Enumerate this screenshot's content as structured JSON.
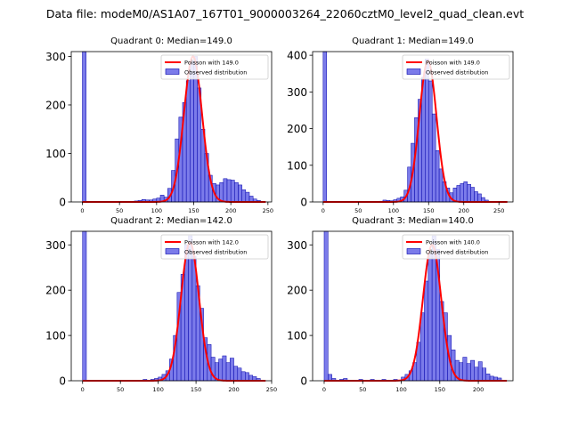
{
  "figure_title": "Data file: modeM0/AS1A07_167T01_9000003264_22060cztM0_level2_quad_clean.evt",
  "colors": {
    "bar_fill": "#7b7bea",
    "bar_edge": "#0000aa",
    "curve": "#ff0000",
    "axis": "#000000"
  },
  "chart_data": [
    {
      "type": "bar",
      "title": "Quadrant 0: Median=149.0",
      "xlim": [
        -15,
        255
      ],
      "ylim": [
        0,
        310
      ],
      "xticks": [
        0,
        50,
        100,
        150,
        200,
        250
      ],
      "yticks": [
        0,
        100,
        200,
        300
      ],
      "bin_width": 5,
      "bins": [
        [
          0,
          310
        ],
        [
          70,
          2
        ],
        [
          75,
          3
        ],
        [
          80,
          5
        ],
        [
          85,
          4
        ],
        [
          90,
          4
        ],
        [
          95,
          6
        ],
        [
          100,
          8
        ],
        [
          105,
          14
        ],
        [
          110,
          10
        ],
        [
          115,
          28
        ],
        [
          120,
          65
        ],
        [
          125,
          130
        ],
        [
          130,
          175
        ],
        [
          135,
          205
        ],
        [
          140,
          250
        ],
        [
          145,
          290
        ],
        [
          150,
          300
        ],
        [
          155,
          235
        ],
        [
          160,
          150
        ],
        [
          165,
          100
        ],
        [
          170,
          55
        ],
        [
          175,
          38
        ],
        [
          180,
          35
        ],
        [
          185,
          40
        ],
        [
          190,
          48
        ],
        [
          195,
          46
        ],
        [
          200,
          45
        ],
        [
          205,
          40
        ],
        [
          210,
          35
        ],
        [
          215,
          25
        ],
        [
          220,
          20
        ],
        [
          225,
          12
        ],
        [
          230,
          6
        ],
        [
          235,
          3
        ]
      ],
      "curve_mean": 149.0,
      "curve_peak": 300,
      "legend": [
        "Poisson with 149.0",
        "Observed distribution"
      ]
    },
    {
      "type": "bar",
      "title": "Quadrant 1: Median=149.0",
      "xlim": [
        -15,
        270
      ],
      "ylim": [
        0,
        410
      ],
      "xticks": [
        0,
        50,
        100,
        150,
        200,
        250
      ],
      "yticks": [
        0,
        100,
        200,
        300,
        400
      ],
      "bin_width": 5,
      "bins": [
        [
          0,
          410
        ],
        [
          80,
          2
        ],
        [
          85,
          5
        ],
        [
          90,
          4
        ],
        [
          95,
          3
        ],
        [
          100,
          6
        ],
        [
          105,
          10
        ],
        [
          110,
          14
        ],
        [
          115,
          32
        ],
        [
          120,
          95
        ],
        [
          125,
          160
        ],
        [
          130,
          230
        ],
        [
          135,
          280
        ],
        [
          140,
          340
        ],
        [
          145,
          390
        ],
        [
          150,
          330
        ],
        [
          155,
          240
        ],
        [
          160,
          140
        ],
        [
          165,
          90
        ],
        [
          170,
          55
        ],
        [
          175,
          38
        ],
        [
          180,
          25
        ],
        [
          185,
          38
        ],
        [
          190,
          45
        ],
        [
          195,
          50
        ],
        [
          200,
          55
        ],
        [
          205,
          48
        ],
        [
          210,
          40
        ],
        [
          215,
          28
        ],
        [
          220,
          22
        ],
        [
          225,
          12
        ],
        [
          230,
          5
        ]
      ],
      "curve_mean": 149.0,
      "curve_peak": 385,
      "legend": [
        "Poisson with 149.0",
        "Observed distribution"
      ]
    },
    {
      "type": "bar",
      "title": "Quadrant 2: Median=142.0",
      "xlim": [
        -15,
        250
      ],
      "ylim": [
        0,
        330
      ],
      "xticks": [
        0,
        50,
        100,
        150,
        200,
        250
      ],
      "yticks": [
        0,
        100,
        200,
        300
      ],
      "bin_width": 5,
      "bins": [
        [
          0,
          330
        ],
        [
          80,
          3
        ],
        [
          90,
          3
        ],
        [
          95,
          5
        ],
        [
          100,
          8
        ],
        [
          105,
          14
        ],
        [
          110,
          22
        ],
        [
          115,
          48
        ],
        [
          120,
          100
        ],
        [
          125,
          195
        ],
        [
          130,
          235
        ],
        [
          135,
          300
        ],
        [
          140,
          320
        ],
        [
          145,
          275
        ],
        [
          150,
          210
        ],
        [
          155,
          160
        ],
        [
          160,
          95
        ],
        [
          165,
          80
        ],
        [
          170,
          52
        ],
        [
          175,
          40
        ],
        [
          180,
          48
        ],
        [
          185,
          55
        ],
        [
          190,
          40
        ],
        [
          195,
          50
        ],
        [
          200,
          32
        ],
        [
          205,
          28
        ],
        [
          210,
          20
        ],
        [
          215,
          18
        ],
        [
          220,
          12
        ],
        [
          225,
          9
        ],
        [
          230,
          5
        ]
      ],
      "curve_mean": 142.0,
      "curve_peak": 305,
      "legend": [
        "Poisson with 142.0",
        "Observed distribution"
      ]
    },
    {
      "type": "bar",
      "title": "Quadrant 3: Median=140.0",
      "xlim": [
        -15,
        245
      ],
      "ylim": [
        0,
        330
      ],
      "xticks": [
        0,
        50,
        100,
        150,
        200
      ],
      "yticks": [
        0,
        100,
        200,
        300
      ],
      "bin_width": 5,
      "bins": [
        [
          0,
          330
        ],
        [
          5,
          14
        ],
        [
          10,
          5
        ],
        [
          20,
          3
        ],
        [
          25,
          5
        ],
        [
          45,
          3
        ],
        [
          60,
          3
        ],
        [
          75,
          3
        ],
        [
          90,
          3
        ],
        [
          100,
          8
        ],
        [
          105,
          14
        ],
        [
          110,
          22
        ],
        [
          115,
          40
        ],
        [
          120,
          85
        ],
        [
          125,
          150
        ],
        [
          130,
          220
        ],
        [
          135,
          280
        ],
        [
          140,
          320
        ],
        [
          145,
          290
        ],
        [
          150,
          175
        ],
        [
          155,
          150
        ],
        [
          160,
          100
        ],
        [
          165,
          68
        ],
        [
          170,
          45
        ],
        [
          175,
          40
        ],
        [
          180,
          52
        ],
        [
          185,
          38
        ],
        [
          190,
          45
        ],
        [
          195,
          30
        ],
        [
          200,
          42
        ],
        [
          205,
          28
        ],
        [
          210,
          15
        ],
        [
          215,
          10
        ],
        [
          220,
          8
        ],
        [
          225,
          6
        ]
      ],
      "curve_mean": 140.0,
      "curve_peak": 300,
      "legend": [
        "Poisson with 140.0",
        "Observed distribution"
      ]
    }
  ]
}
